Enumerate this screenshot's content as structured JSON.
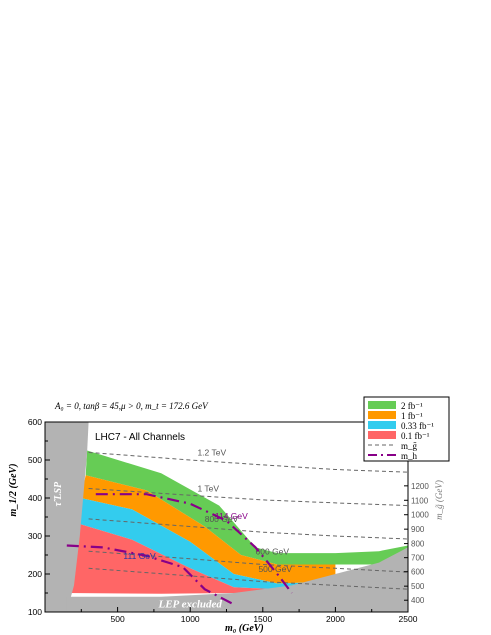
{
  "chart_data": {
    "type": "area",
    "title": "A₀ = 0, tanβ = 45,μ > 0, m_t = 172.6 GeV",
    "subtitle": "LHC7 - All Channels",
    "xlabel": "m₀ (GeV)",
    "ylabel": "m_1/2 (GeV)",
    "y2label": "m_g̃ (GeV)",
    "xlim": [
      0,
      2500
    ],
    "ylim": [
      100,
      600
    ],
    "xticks": [
      "500",
      "1000",
      "1500",
      "2000",
      "2500"
    ],
    "yticks": [
      "100",
      "200",
      "300",
      "400",
      "500",
      "600"
    ],
    "y2ticks": [
      "400",
      "500",
      "600",
      "700",
      "800",
      "900",
      "1000",
      "1100",
      "1200"
    ],
    "legend_position": "top-right",
    "excluded_regions": [
      {
        "label": "τ̃ LSP",
        "color": "#b3b3b3",
        "boundary": [
          [
            0,
            600
          ],
          [
            0,
            100
          ],
          [
            150,
            100
          ],
          [
            200,
            170
          ],
          [
            240,
            300
          ],
          [
            290,
            520
          ],
          [
            300,
            600
          ]
        ]
      },
      {
        "label": "LEP excluded",
        "color": "#b3b3b3",
        "boundary": [
          [
            150,
            100
          ],
          [
            2500,
            100
          ],
          [
            2500,
            270
          ],
          [
            2300,
            230
          ],
          [
            2000,
            200
          ],
          [
            1700,
            170
          ],
          [
            1300,
            150
          ],
          [
            800,
            140
          ],
          [
            150,
            140
          ]
        ]
      }
    ],
    "series": [
      {
        "name": "2 fb⁻¹",
        "color": "#66cc55",
        "upper": [
          [
            290,
            525
          ],
          [
            800,
            465
          ],
          [
            1200,
            380
          ],
          [
            1450,
            270
          ],
          [
            1600,
            255
          ],
          [
            2000,
            255
          ],
          [
            2300,
            260
          ],
          [
            2500,
            275
          ]
        ],
        "lower": [
          [
            280,
            460
          ],
          [
            700,
            420
          ],
          [
            1100,
            325
          ],
          [
            1350,
            250
          ],
          [
            1600,
            225
          ],
          [
            2000,
            225
          ],
          [
            2300,
            225
          ],
          [
            2500,
            270
          ]
        ]
      },
      {
        "name": "1 fb⁻¹",
        "color": "#ff9900",
        "upper": [
          [
            280,
            460
          ],
          [
            700,
            420
          ],
          [
            1100,
            325
          ],
          [
            1350,
            250
          ],
          [
            1600,
            225
          ],
          [
            2000,
            225
          ]
        ],
        "lower": [
          [
            245,
            400
          ],
          [
            600,
            370
          ],
          [
            1000,
            285
          ],
          [
            1300,
            200
          ],
          [
            1600,
            175
          ],
          [
            2000,
            180
          ]
        ]
      },
      {
        "name": "0.33 fb⁻¹",
        "color": "#33ccee",
        "upper": [
          [
            245,
            400
          ],
          [
            600,
            370
          ],
          [
            1000,
            285
          ],
          [
            1300,
            200
          ],
          [
            1600,
            175
          ],
          [
            2000,
            180
          ]
        ],
        "lower": [
          [
            210,
            335
          ],
          [
            600,
            290
          ],
          [
            1000,
            215
          ],
          [
            1300,
            165
          ],
          [
            1600,
            160
          ],
          [
            1800,
            160
          ]
        ]
      },
      {
        "name": "0.1 fb⁻¹",
        "color": "#ff6666",
        "upper": [
          [
            210,
            335
          ],
          [
            600,
            290
          ],
          [
            1000,
            215
          ],
          [
            1300,
            165
          ],
          [
            1600,
            160
          ],
          [
            1800,
            160
          ]
        ],
        "lower": [
          [
            150,
            150
          ],
          [
            800,
            148
          ],
          [
            1300,
            150
          ],
          [
            1700,
            150
          ]
        ]
      }
    ],
    "gluino_contours": [
      {
        "label": "1.2 TeV",
        "points": [
          [
            300,
            520
          ],
          [
            1000,
            500
          ],
          [
            1500,
            487
          ],
          [
            2000,
            475
          ],
          [
            2500,
            468
          ]
        ]
      },
      {
        "label": "1 TeV",
        "points": [
          [
            300,
            425
          ],
          [
            1000,
            407
          ],
          [
            1500,
            395
          ],
          [
            2000,
            387
          ],
          [
            2500,
            380
          ]
        ]
      },
      {
        "label": "800 GeV",
        "points": [
          [
            300,
            345
          ],
          [
            1000,
            325
          ],
          [
            1500,
            310
          ],
          [
            2000,
            300
          ],
          [
            2500,
            292
          ]
        ]
      },
      {
        "label": "600 GeV",
        "points": [
          [
            300,
            260
          ],
          [
            1000,
            240
          ],
          [
            1500,
            225
          ],
          [
            2000,
            215
          ],
          [
            2500,
            205
          ]
        ]
      },
      {
        "label": "500 GeV",
        "points": [
          [
            300,
            215
          ],
          [
            1000,
            195
          ],
          [
            1500,
            180
          ],
          [
            2000,
            170
          ],
          [
            2500,
            160
          ]
        ]
      }
    ],
    "higgs_contours": [
      {
        "label": "114 GeV",
        "points": [
          [
            350,
            410
          ],
          [
            700,
            410
          ],
          [
            1000,
            385
          ],
          [
            1250,
            340
          ],
          [
            1450,
            270
          ],
          [
            1600,
            200
          ],
          [
            1700,
            150
          ]
        ]
      },
      {
        "label": "111 GeV",
        "points": [
          [
            150,
            275
          ],
          [
            400,
            270
          ],
          [
            700,
            248
          ],
          [
            950,
            218
          ],
          [
            1100,
            160
          ],
          [
            1300,
            120
          ]
        ]
      }
    ],
    "legend": [
      {
        "label": "2 fb⁻¹",
        "color": "#66cc55",
        "kind": "fill"
      },
      {
        "label": "1 fb⁻¹",
        "color": "#ff9900",
        "kind": "fill"
      },
      {
        "label": "0.33 fb⁻¹",
        "color": "#33ccee",
        "kind": "fill"
      },
      {
        "label": "0.1 fb⁻¹",
        "color": "#ff6666",
        "kind": "fill"
      },
      {
        "label": "m_g̃",
        "color": "#666666",
        "kind": "dash"
      },
      {
        "label": "m_h",
        "color": "#880088",
        "kind": "dashdot"
      }
    ]
  }
}
